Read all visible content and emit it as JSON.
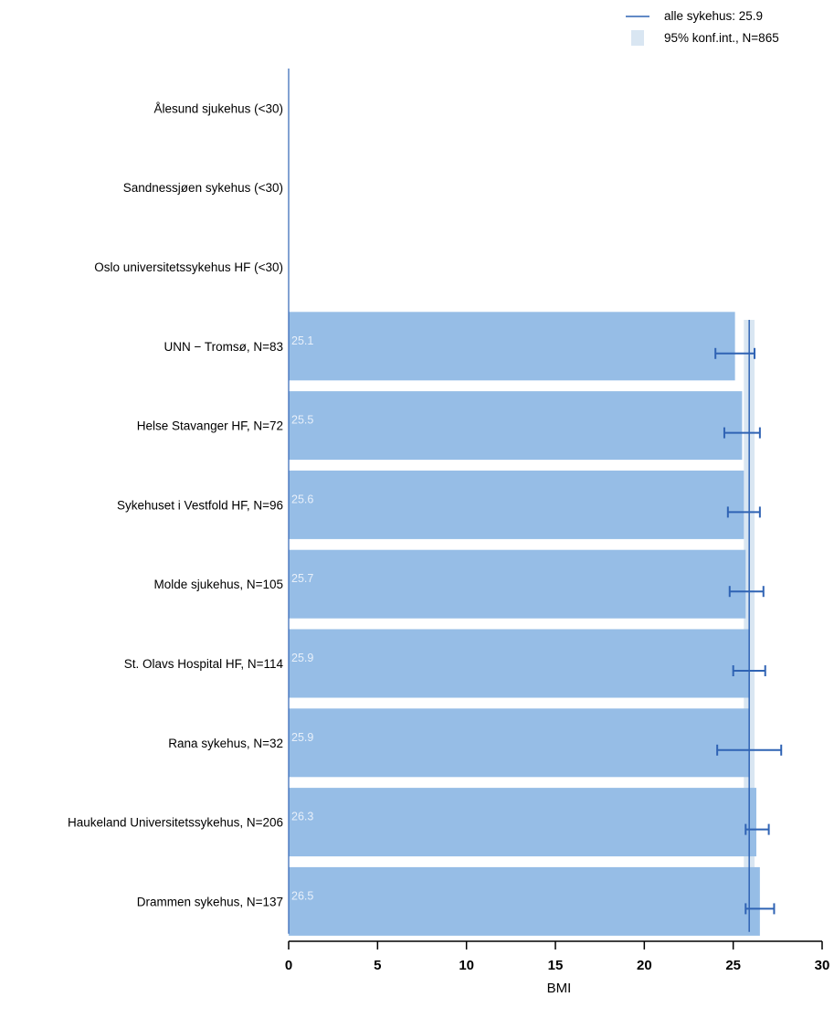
{
  "chart_data": {
    "type": "bar",
    "orientation": "horizontal",
    "categories": [
      "Ålesund sjukehus (<30)",
      "Sandnessjøen sykehus (<30)",
      "Oslo universitetssykehus HF (<30)",
      "UNN − Tromsø, N=83",
      "Helse Stavanger HF, N=72",
      "Sykehuset i Vestfold HF, N=96",
      "Molde sjukehus, N=105",
      "St. Olavs Hospital HF, N=114",
      "Rana sykehus, N=32",
      "Haukeland Universitetssykehus, N=206",
      "Drammen sykehus, N=137"
    ],
    "values": [
      null,
      null,
      null,
      25.1,
      25.5,
      25.6,
      25.7,
      25.9,
      25.9,
      26.3,
      26.5
    ],
    "value_labels": [
      "",
      "",
      "",
      "25.1",
      "25.5",
      "25.6",
      "25.7",
      "25.9",
      "25.9",
      "26.3",
      "26.5"
    ],
    "ci_low": [
      null,
      null,
      null,
      24.0,
      24.5,
      24.7,
      24.8,
      25.0,
      24.1,
      25.7,
      25.7
    ],
    "ci_high": [
      null,
      null,
      null,
      26.2,
      26.5,
      26.5,
      26.7,
      26.8,
      27.7,
      27.0,
      27.3
    ],
    "reference_line": {
      "value": 25.9,
      "label": "alle sykehus: 25.9"
    },
    "reference_band": {
      "low": 25.6,
      "high": 26.2,
      "label": "95% konf.int., N=865"
    },
    "xlabel": "BMI",
    "xlim": [
      0,
      30
    ],
    "xticks": [
      0,
      5,
      10,
      15,
      20,
      25,
      30
    ],
    "legend_position": "top-right",
    "colors": {
      "bar": "#96bde6",
      "band": "#d9e6f2",
      "line": "#2f63b4",
      "errorbar": "#2f63b4",
      "value_label": "#e8f0fa"
    }
  }
}
